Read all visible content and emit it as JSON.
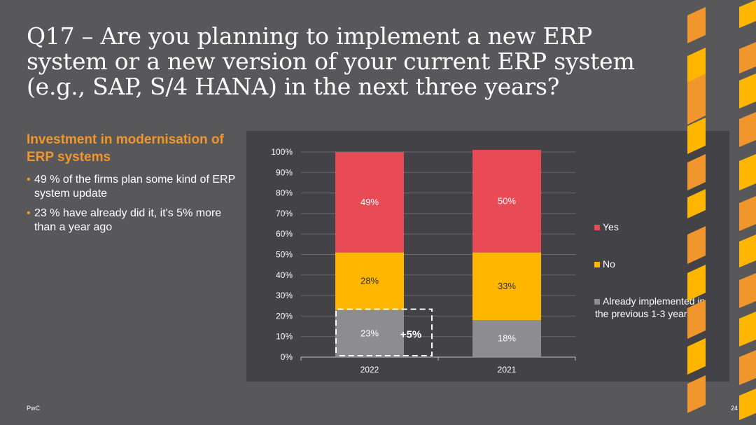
{
  "slide": {
    "title": "Q17 – Are you planning to implement a new ERP system or a new version of your current ERP system (e.g., SAP, S/4 HANA) in the next three years?",
    "subtitle": "Investment in modernisation of ERP systems",
    "bullets": [
      "49 % of the firms plan some kind of ERP system update",
      "23 % have already did it, it's 5% more than a year ago"
    ],
    "footer_left": "PwC",
    "page_number": "24"
  },
  "colors": {
    "yes": "#e84b56",
    "no": "#ffb600",
    "already": "#8d8c8f",
    "accent": "#f0962c"
  },
  "chart_data": {
    "type": "bar",
    "stacked": true,
    "categories": [
      "2022",
      "2021"
    ],
    "series": [
      {
        "name": "Already implemented in the previous 1-3 years",
        "values": [
          23,
          18
        ],
        "labels": [
          "23%",
          "18%"
        ]
      },
      {
        "name": "No",
        "values": [
          28,
          33
        ],
        "labels": [
          "28%",
          "33%"
        ]
      },
      {
        "name": "Yes",
        "values": [
          49,
          50
        ],
        "labels": [
          "49%",
          "50%"
        ]
      }
    ],
    "ylim": [
      0,
      100
    ],
    "yticks": [
      "0%",
      "10%",
      "20%",
      "30%",
      "40%",
      "50%",
      "60%",
      "70%",
      "80%",
      "90%",
      "100%"
    ],
    "legend_position": "right",
    "legend_order": [
      "Yes",
      "No",
      "Already implemented in the previous 1-3 years"
    ],
    "annotation": "+5%",
    "grid": true
  }
}
